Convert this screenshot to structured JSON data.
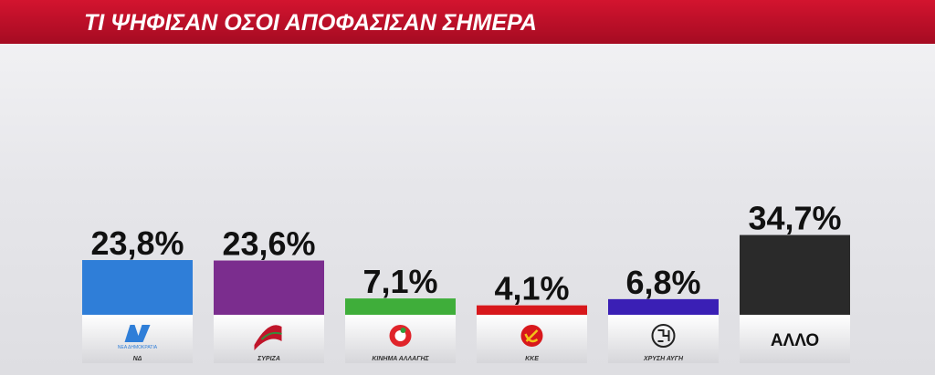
{
  "chart_data": {
    "type": "bar",
    "title": "ΤΙ ΨΗΦΙΣΑΝ ΟΣΟΙ ΑΠΟΦΑΣΙΣΑΝ ΣΗΜΕΡΑ",
    "categories": [
      "ΝΔ",
      "ΣΥΡΙΖΑ",
      "ΚΙΝΗΜΑ ΑΛΛΑΓΗΣ",
      "ΚΚΕ",
      "ΧΡΥΣΗ ΑΥΓΗ",
      "ΑΛΛΟ"
    ],
    "values": [
      23.8,
      23.6,
      7.1,
      4.1,
      6.8,
      34.7
    ],
    "value_labels": [
      "23,8%",
      "23,6%",
      "7,1%",
      "4,1%",
      "6,8%",
      "34,7%"
    ],
    "colors": [
      "#2f7ed8",
      "#7b2d8e",
      "#3fae3a",
      "#d8181c",
      "#3a1fb5",
      "#2a2a2a"
    ],
    "annotations": [
      "ΝΕΑ ΔΗΜΟΚΡΑΤΙΑ"
    ]
  }
}
